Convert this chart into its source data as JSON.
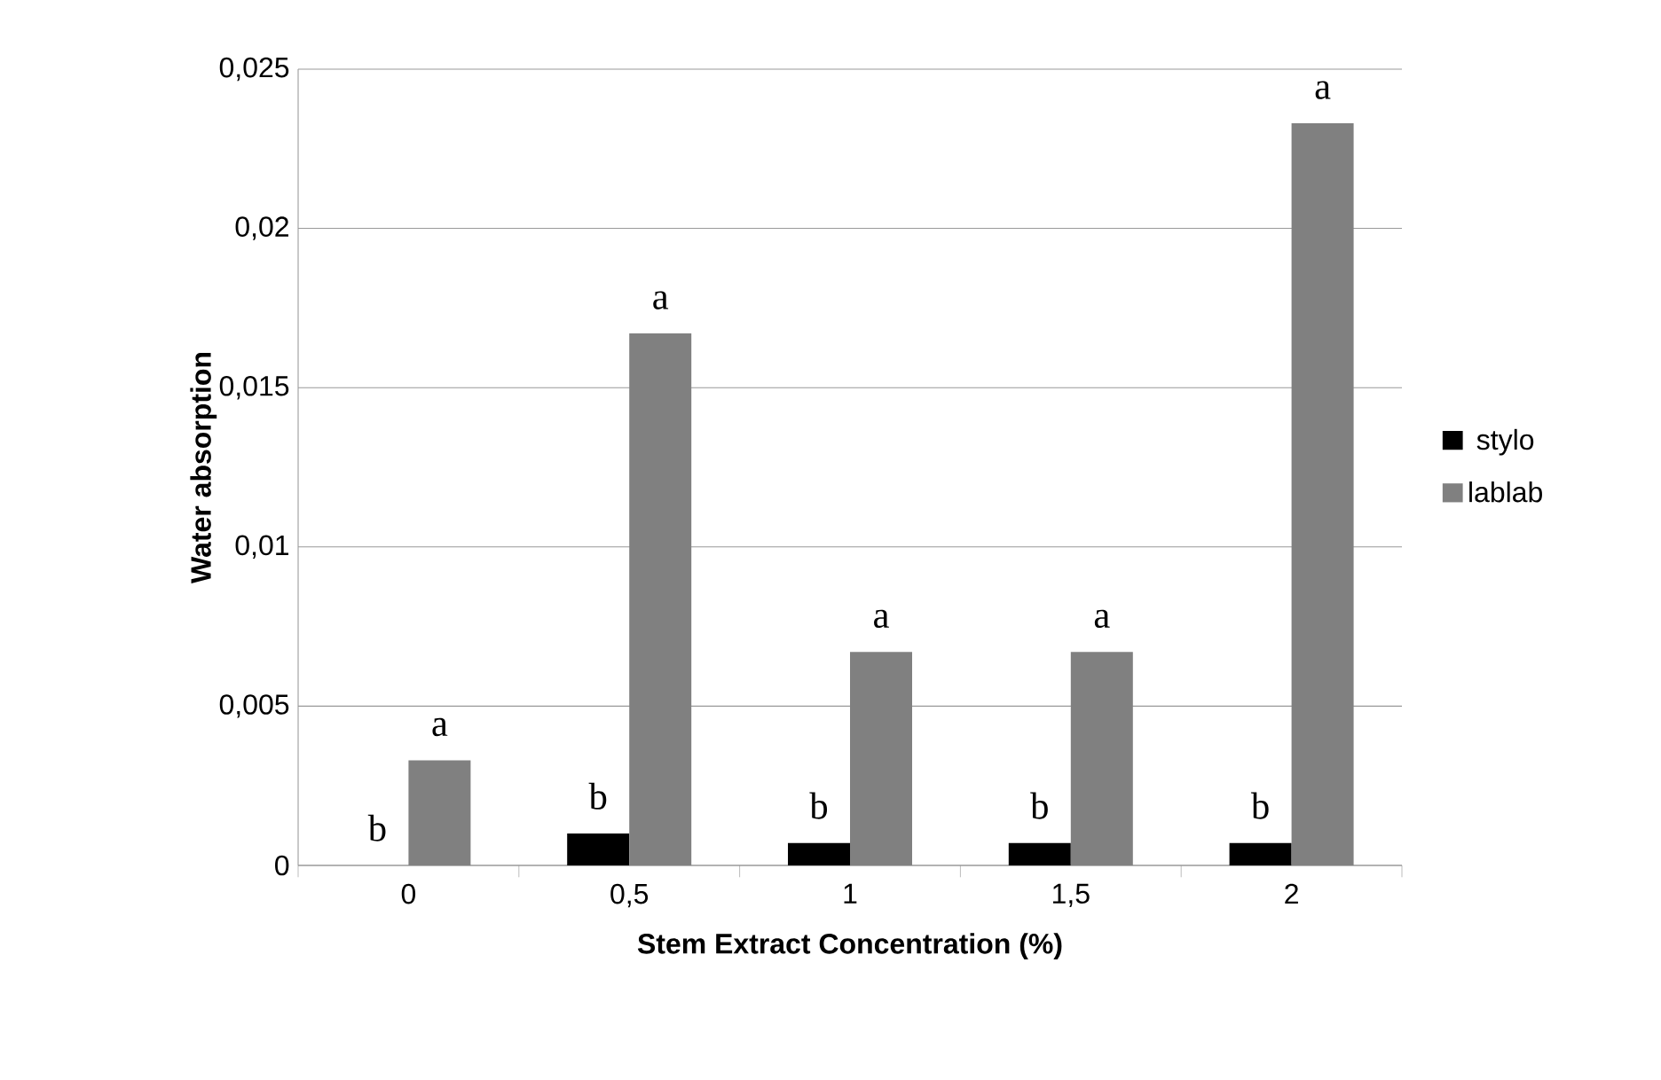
{
  "chart_data": {
    "type": "bar",
    "xlabel": "Stem Extract Concentration (%)",
    "ylabel": "Water absorption",
    "categories": [
      "0",
      "0,5",
      "1",
      "1,5",
      "2"
    ],
    "series": [
      {
        "name": "stylo",
        "color": "#000000",
        "values": [
          0,
          0.001,
          0.0007,
          0.0007,
          0.0007
        ]
      },
      {
        "name": "lablab",
        "color": "#808080",
        "values": [
          0.0033,
          0.0167,
          0.0067,
          0.0067,
          0.0233
        ]
      }
    ],
    "ylim": [
      0,
      0.025
    ],
    "yticks": [
      {
        "value": 0,
        "label": "0"
      },
      {
        "value": 0.005,
        "label": "0,005"
      },
      {
        "value": 0.01,
        "label": "0,01"
      },
      {
        "value": 0.015,
        "label": "0,015"
      },
      {
        "value": 0.02,
        "label": "0,02"
      },
      {
        "value": 0.025,
        "label": "0,025"
      }
    ],
    "grid": "y",
    "legend": "right",
    "annotations": [
      {
        "text": "b",
        "x": "0",
        "y": 0
      },
      {
        "text": "a",
        "x": "0",
        "y": 0.0033
      },
      {
        "text": "b",
        "x": "0,5",
        "y": 0.001
      },
      {
        "text": "a",
        "x": "0,5",
        "y": 0.0167
      },
      {
        "text": "b",
        "x": "1",
        "y": 0.0007
      },
      {
        "text": "a",
        "x": "1",
        "y": 0.0067
      },
      {
        "text": "b",
        "x": "1,5",
        "y": 0.0007
      },
      {
        "text": "a",
        "x": "1,5",
        "y": 0.0067
      },
      {
        "text": "b",
        "x": "2",
        "y": 0.0007
      },
      {
        "text": "a",
        "x": "2",
        "y": 0.0233
      }
    ]
  }
}
